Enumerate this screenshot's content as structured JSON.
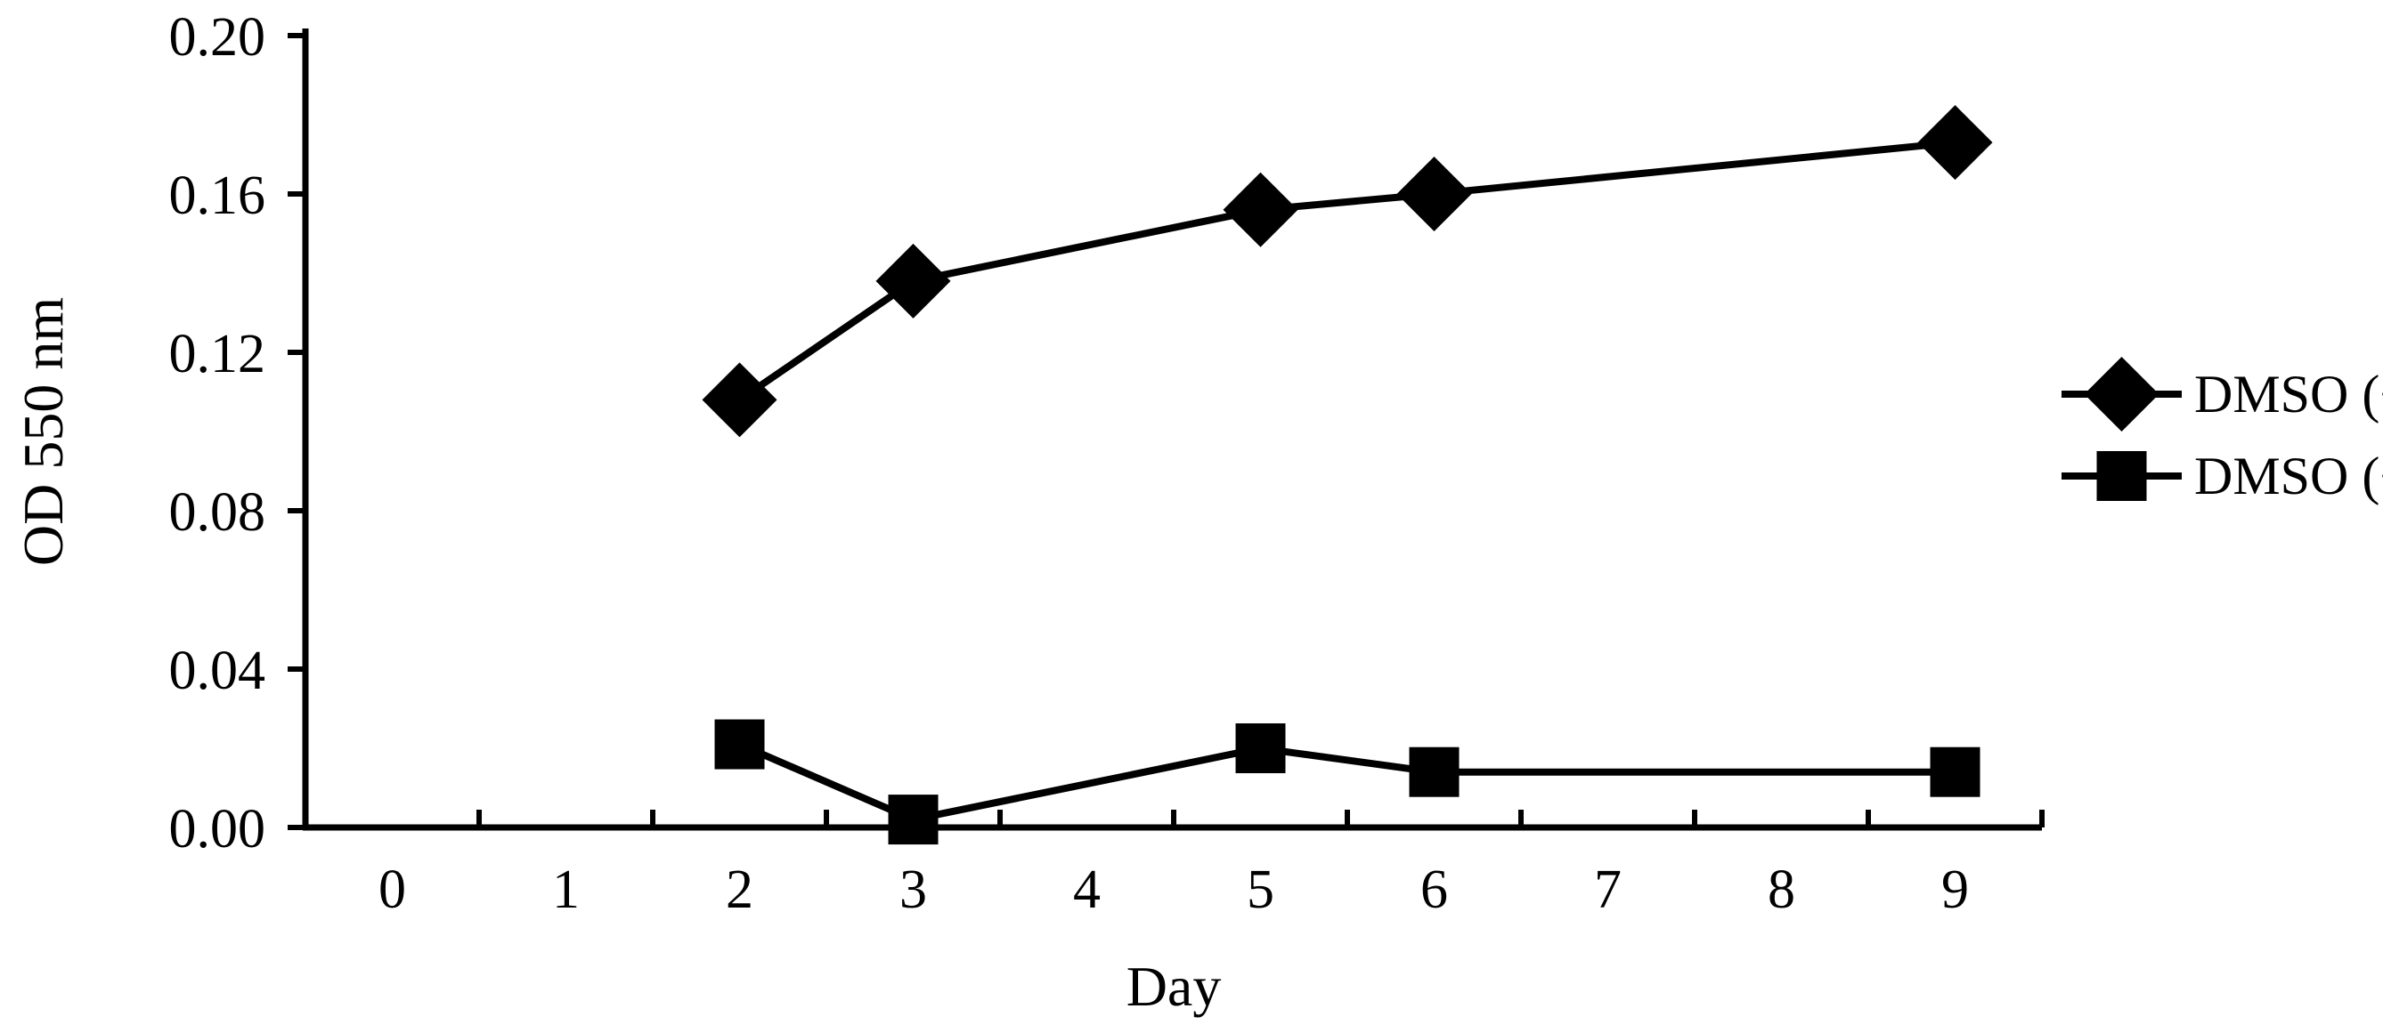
{
  "chart_data": {
    "type": "line",
    "title": "",
    "xlabel": "Day",
    "ylabel": "OD 550 nm",
    "categories": [
      "0",
      "1",
      "2",
      "3",
      "4",
      "5",
      "6",
      "7",
      "8",
      "9"
    ],
    "y_ticks": [
      "0.00",
      "0.04",
      "0.08",
      "0.12",
      "0.16",
      "0.20"
    ],
    "ylim": [
      0,
      0.2
    ],
    "grid": false,
    "legend_position": "right",
    "series": [
      {
        "name": "DMSO (+)",
        "marker": "diamond",
        "color": "#000000",
        "x": [
          "2",
          "3",
          "5",
          "6",
          "9"
        ],
        "values": [
          0.108,
          0.138,
          0.156,
          0.16,
          0.173
        ]
      },
      {
        "name": "DMSO (−)",
        "marker": "square",
        "color": "#000000",
        "x": [
          "2",
          "3",
          "5",
          "6",
          "9"
        ],
        "values": [
          0.021,
          0.002,
          0.02,
          0.014,
          0.014
        ]
      }
    ]
  }
}
